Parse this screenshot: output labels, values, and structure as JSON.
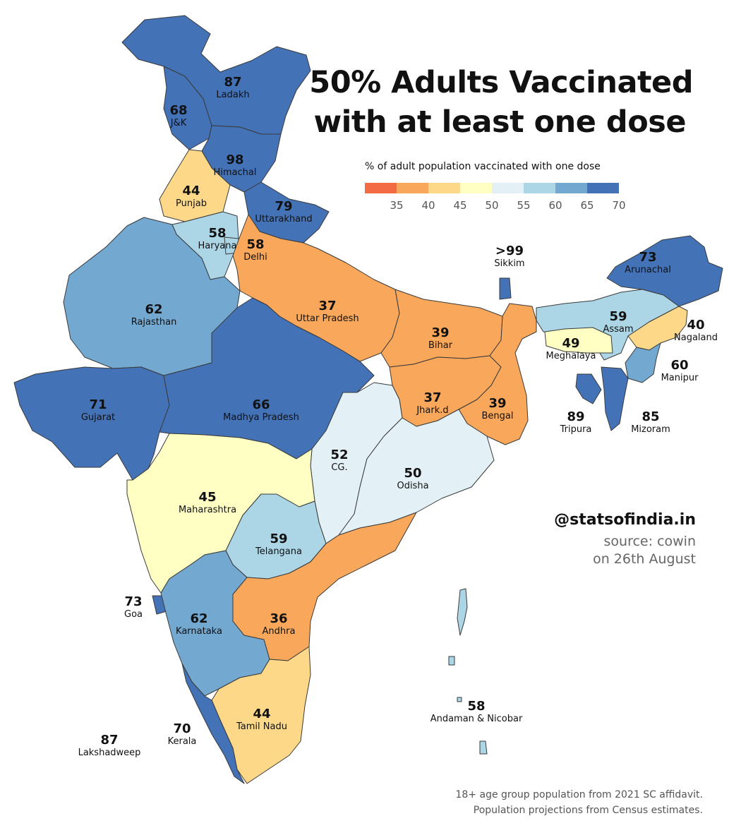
{
  "title": [
    "50% Adults Vaccinated",
    "with at least one dose"
  ],
  "legend": {
    "title": "% of adult population vaccinated with one dose",
    "colors": [
      "#f26b43",
      "#f9a75a",
      "#fdd889",
      "#ffffc4",
      "#e3f1f6",
      "#acd6e6",
      "#73a8d0",
      "#4372b7"
    ],
    "ticks": [
      "35",
      "40",
      "45",
      "50",
      "55",
      "60",
      "65",
      "70"
    ]
  },
  "credit": {
    "handle": "@statsofindia.in",
    "source": "source: cowin",
    "date": "on 26th August"
  },
  "footnote": [
    "18+ age group population from 2021 SC affidavit.",
    "Population projections from Census estimates."
  ],
  "chart_data": {
    "type": "choropleth",
    "unit": "% of adult population vaccinated with one dose",
    "regions": [
      {
        "name": "Ladakh",
        "label": "87",
        "value": 87
      },
      {
        "name": "J&K",
        "label": "68",
        "value": 68
      },
      {
        "name": "Himachal",
        "label": "98",
        "value": 98
      },
      {
        "name": "Punjab",
        "label": "44",
        "value": 44
      },
      {
        "name": "Uttarakhand",
        "label": "79",
        "value": 79
      },
      {
        "name": "Haryana",
        "label": "58",
        "value": 58
      },
      {
        "name": "Delhi",
        "label": "58",
        "value": 58
      },
      {
        "name": "Rajasthan",
        "label": "62",
        "value": 62
      },
      {
        "name": "Uttar Pradesh",
        "label": "37",
        "value": 37
      },
      {
        "name": "Bihar",
        "label": "39",
        "value": 39
      },
      {
        "name": "Sikkim",
        "label": ">99",
        "value": 99
      },
      {
        "name": "Arunachal",
        "label": "73",
        "value": 73
      },
      {
        "name": "Assam",
        "label": "59",
        "value": 59
      },
      {
        "name": "Nagaland",
        "label": "40",
        "value": 40
      },
      {
        "name": "Meghalaya",
        "label": "49",
        "value": 49
      },
      {
        "name": "Manipur",
        "label": "60",
        "value": 60
      },
      {
        "name": "Tripura",
        "label": "89",
        "value": 89
      },
      {
        "name": "Mizoram",
        "label": "85",
        "value": 85
      },
      {
        "name": "Gujarat",
        "label": "71",
        "value": 71
      },
      {
        "name": "Madhya Pradesh",
        "label": "66",
        "value": 66
      },
      {
        "name": "Jhark.d",
        "label": "37",
        "value": 37
      },
      {
        "name": "Bengal",
        "label": "39",
        "value": 39
      },
      {
        "name": "CG.",
        "label": "52",
        "value": 52
      },
      {
        "name": "Odisha",
        "label": "50",
        "value": 50
      },
      {
        "name": "Maharashtra",
        "label": "45",
        "value": 45
      },
      {
        "name": "Telangana",
        "label": "59",
        "value": 59
      },
      {
        "name": "Goa",
        "label": "73",
        "value": 73
      },
      {
        "name": "Karnataka",
        "label": "62",
        "value": 62
      },
      {
        "name": "Andhra",
        "label": "36",
        "value": 36
      },
      {
        "name": "Tamil Nadu",
        "label": "44",
        "value": 44
      },
      {
        "name": "Kerala",
        "label": "70",
        "value": 70
      },
      {
        "name": "Lakshadweep",
        "label": "87",
        "value": 87
      },
      {
        "name": "Andaman & Nicobar",
        "label": "58",
        "value": 58
      }
    ]
  }
}
